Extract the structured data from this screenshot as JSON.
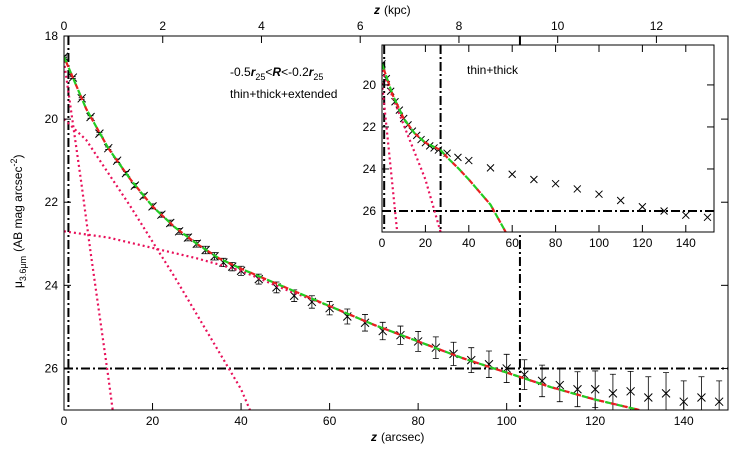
{
  "chart_data": [
    {
      "type": "profile",
      "xlabel": [
        {
          "text": "z",
          "style": "var"
        },
        {
          "text": "(arcsec)"
        }
      ],
      "x2label": [
        {
          "text": "z",
          "style": "var"
        },
        {
          "text": "(kpc)"
        }
      ],
      "ylabel": [
        {
          "text": "μ"
        },
        {
          "text": "3.6μm",
          "style": "sub"
        },
        {
          "text": "(AB mag arcsec"
        },
        {
          "text": "-2",
          "style": "sup"
        },
        {
          "text": ")"
        }
      ],
      "annotations": [
        [
          {
            "text": "-0.5"
          },
          {
            "text": "r",
            "style": "var"
          },
          {
            "text": "25",
            "style": "sub"
          },
          {
            "text": "<"
          },
          {
            "text": "R",
            "style": "var"
          },
          {
            "text": "<-0.2"
          },
          {
            "text": "r",
            "style": "var"
          },
          {
            "text": "25",
            "style": "sub"
          }
        ],
        [
          {
            "text": "thin+thick+extended"
          }
        ]
      ],
      "xlim": [
        0,
        150
      ],
      "xticks": [
        0,
        20,
        40,
        60,
        80,
        100,
        120,
        140
      ],
      "x2lim": [
        0,
        13.45
      ],
      "x2ticks": [
        0,
        2,
        4,
        6,
        8,
        10,
        12
      ],
      "ylim": [
        18,
        27
      ],
      "y_reversed": true,
      "yticks": [
        18,
        20,
        22,
        24,
        26
      ],
      "vlines": [
        1,
        103
      ],
      "hlines": [
        26
      ],
      "series": [
        {
          "style": "cross",
          "color": "#000000",
          "x": [
            0,
            2,
            4,
            6,
            8,
            10,
            12,
            14,
            16,
            18,
            20,
            22,
            24,
            26,
            28,
            30,
            32,
            34,
            36,
            38,
            40,
            44,
            48,
            52,
            56,
            60,
            64,
            68,
            72,
            76,
            80,
            84,
            88,
            92,
            96,
            100,
            104,
            108,
            112,
            116,
            120,
            124,
            128,
            132,
            136,
            140,
            144,
            148
          ],
          "values": [
            18.5,
            19.0,
            19.5,
            19.95,
            20.35,
            20.7,
            21.0,
            21.3,
            21.6,
            21.85,
            22.1,
            22.3,
            22.5,
            22.7,
            22.85,
            23.0,
            23.15,
            23.3,
            23.45,
            23.55,
            23.65,
            23.85,
            24.05,
            24.25,
            24.4,
            24.55,
            24.75,
            24.9,
            25.1,
            25.2,
            25.35,
            25.5,
            25.65,
            25.8,
            25.9,
            26.0,
            26.15,
            26.3,
            26.4,
            26.5,
            26.5,
            26.6,
            26.55,
            26.7,
            26.6,
            26.8,
            26.7,
            26.8
          ],
          "errors": [
            0.02,
            0.02,
            0.02,
            0.03,
            0.03,
            0.03,
            0.04,
            0.04,
            0.05,
            0.05,
            0.06,
            0.06,
            0.07,
            0.07,
            0.08,
            0.08,
            0.09,
            0.09,
            0.1,
            0.1,
            0.11,
            0.12,
            0.13,
            0.14,
            0.15,
            0.16,
            0.18,
            0.2,
            0.21,
            0.22,
            0.24,
            0.26,
            0.28,
            0.3,
            0.32,
            0.34,
            0.36,
            0.38,
            0.4,
            0.42,
            0.44,
            0.46,
            0.48,
            0.5,
            0.5,
            0.5,
            0.5,
            0.5
          ]
        },
        {
          "style": "dotted",
          "color": "#e8105a",
          "x": [
            0,
            2,
            4,
            6,
            8,
            10,
            11
          ],
          "values": [
            18.6,
            20.1,
            21.6,
            23.2,
            24.7,
            26.2,
            27
          ]
        },
        {
          "style": "dotted",
          "color": "#e8105a",
          "x": [
            0,
            5,
            10,
            15,
            20,
            25,
            30,
            35,
            40,
            42
          ],
          "values": [
            20.0,
            20.5,
            21.3,
            22.1,
            22.95,
            23.8,
            24.7,
            25.6,
            26.5,
            27
          ]
        },
        {
          "style": "dotted",
          "color": "#e8105a",
          "x": [
            0,
            10,
            20,
            30,
            40,
            50,
            60,
            70,
            80,
            90,
            100,
            110,
            120,
            130
          ],
          "values": [
            22.7,
            22.85,
            23.1,
            23.35,
            23.65,
            24.1,
            24.5,
            24.95,
            25.35,
            25.75,
            26.1,
            26.45,
            26.75,
            27
          ]
        },
        {
          "style": "dashed",
          "color": "#22cc22",
          "color2": "#e82020",
          "x": [
            0,
            5,
            10,
            15,
            20,
            25,
            30,
            35,
            40,
            50,
            60,
            70,
            80,
            90,
            100,
            110,
            120,
            130
          ],
          "values": [
            18.5,
            19.75,
            20.7,
            21.45,
            22.1,
            22.6,
            23.0,
            23.35,
            23.6,
            24.05,
            24.5,
            24.95,
            25.35,
            25.75,
            26.1,
            26.45,
            26.75,
            27
          ]
        }
      ]
    },
    {
      "type": "profile",
      "annotations": [
        [
          {
            "text": "thin+thick"
          }
        ]
      ],
      "xlim": [
        0,
        153
      ],
      "xticks": [
        0,
        20,
        40,
        60,
        80,
        100,
        120,
        140
      ],
      "ylim": [
        18.1,
        27
      ],
      "y_reversed": true,
      "yticks": [
        20,
        22,
        24,
        26
      ],
      "vlines": [
        1,
        27
      ],
      "hlines": [
        26
      ],
      "series": [
        {
          "style": "cross",
          "color": "#000000",
          "x": [
            0,
            2,
            4,
            6,
            8,
            10,
            12,
            14,
            16,
            18,
            20,
            22,
            24,
            26,
            30,
            35,
            40,
            50,
            60,
            70,
            80,
            90,
            100,
            110,
            120,
            130,
            140,
            150
          ],
          "values": [
            19.0,
            19.7,
            20.3,
            20.8,
            21.2,
            21.6,
            21.9,
            22.2,
            22.4,
            22.6,
            22.75,
            22.9,
            23.0,
            23.1,
            23.25,
            23.45,
            23.6,
            23.95,
            24.25,
            24.5,
            24.7,
            24.95,
            25.2,
            25.5,
            25.8,
            26.0,
            26.2,
            26.3
          ]
        },
        {
          "style": "dotted",
          "color": "#e8105a",
          "x": [
            0,
            7
          ],
          "values": [
            19.9,
            27
          ]
        },
        {
          "style": "dotted",
          "color": "#e8105a",
          "x": [
            0,
            10,
            20,
            27
          ],
          "values": [
            19.3,
            21.9,
            24.5,
            27
          ]
        },
        {
          "style": "dashed",
          "color": "#22cc22",
          "color2": "#e82020",
          "x": [
            0,
            5,
            10,
            15,
            20,
            27,
            30,
            35,
            40,
            45,
            50,
            57
          ],
          "values": [
            19.0,
            20.5,
            21.6,
            22.3,
            22.75,
            23.1,
            23.45,
            23.95,
            24.5,
            25.1,
            25.7,
            27
          ]
        }
      ]
    }
  ]
}
